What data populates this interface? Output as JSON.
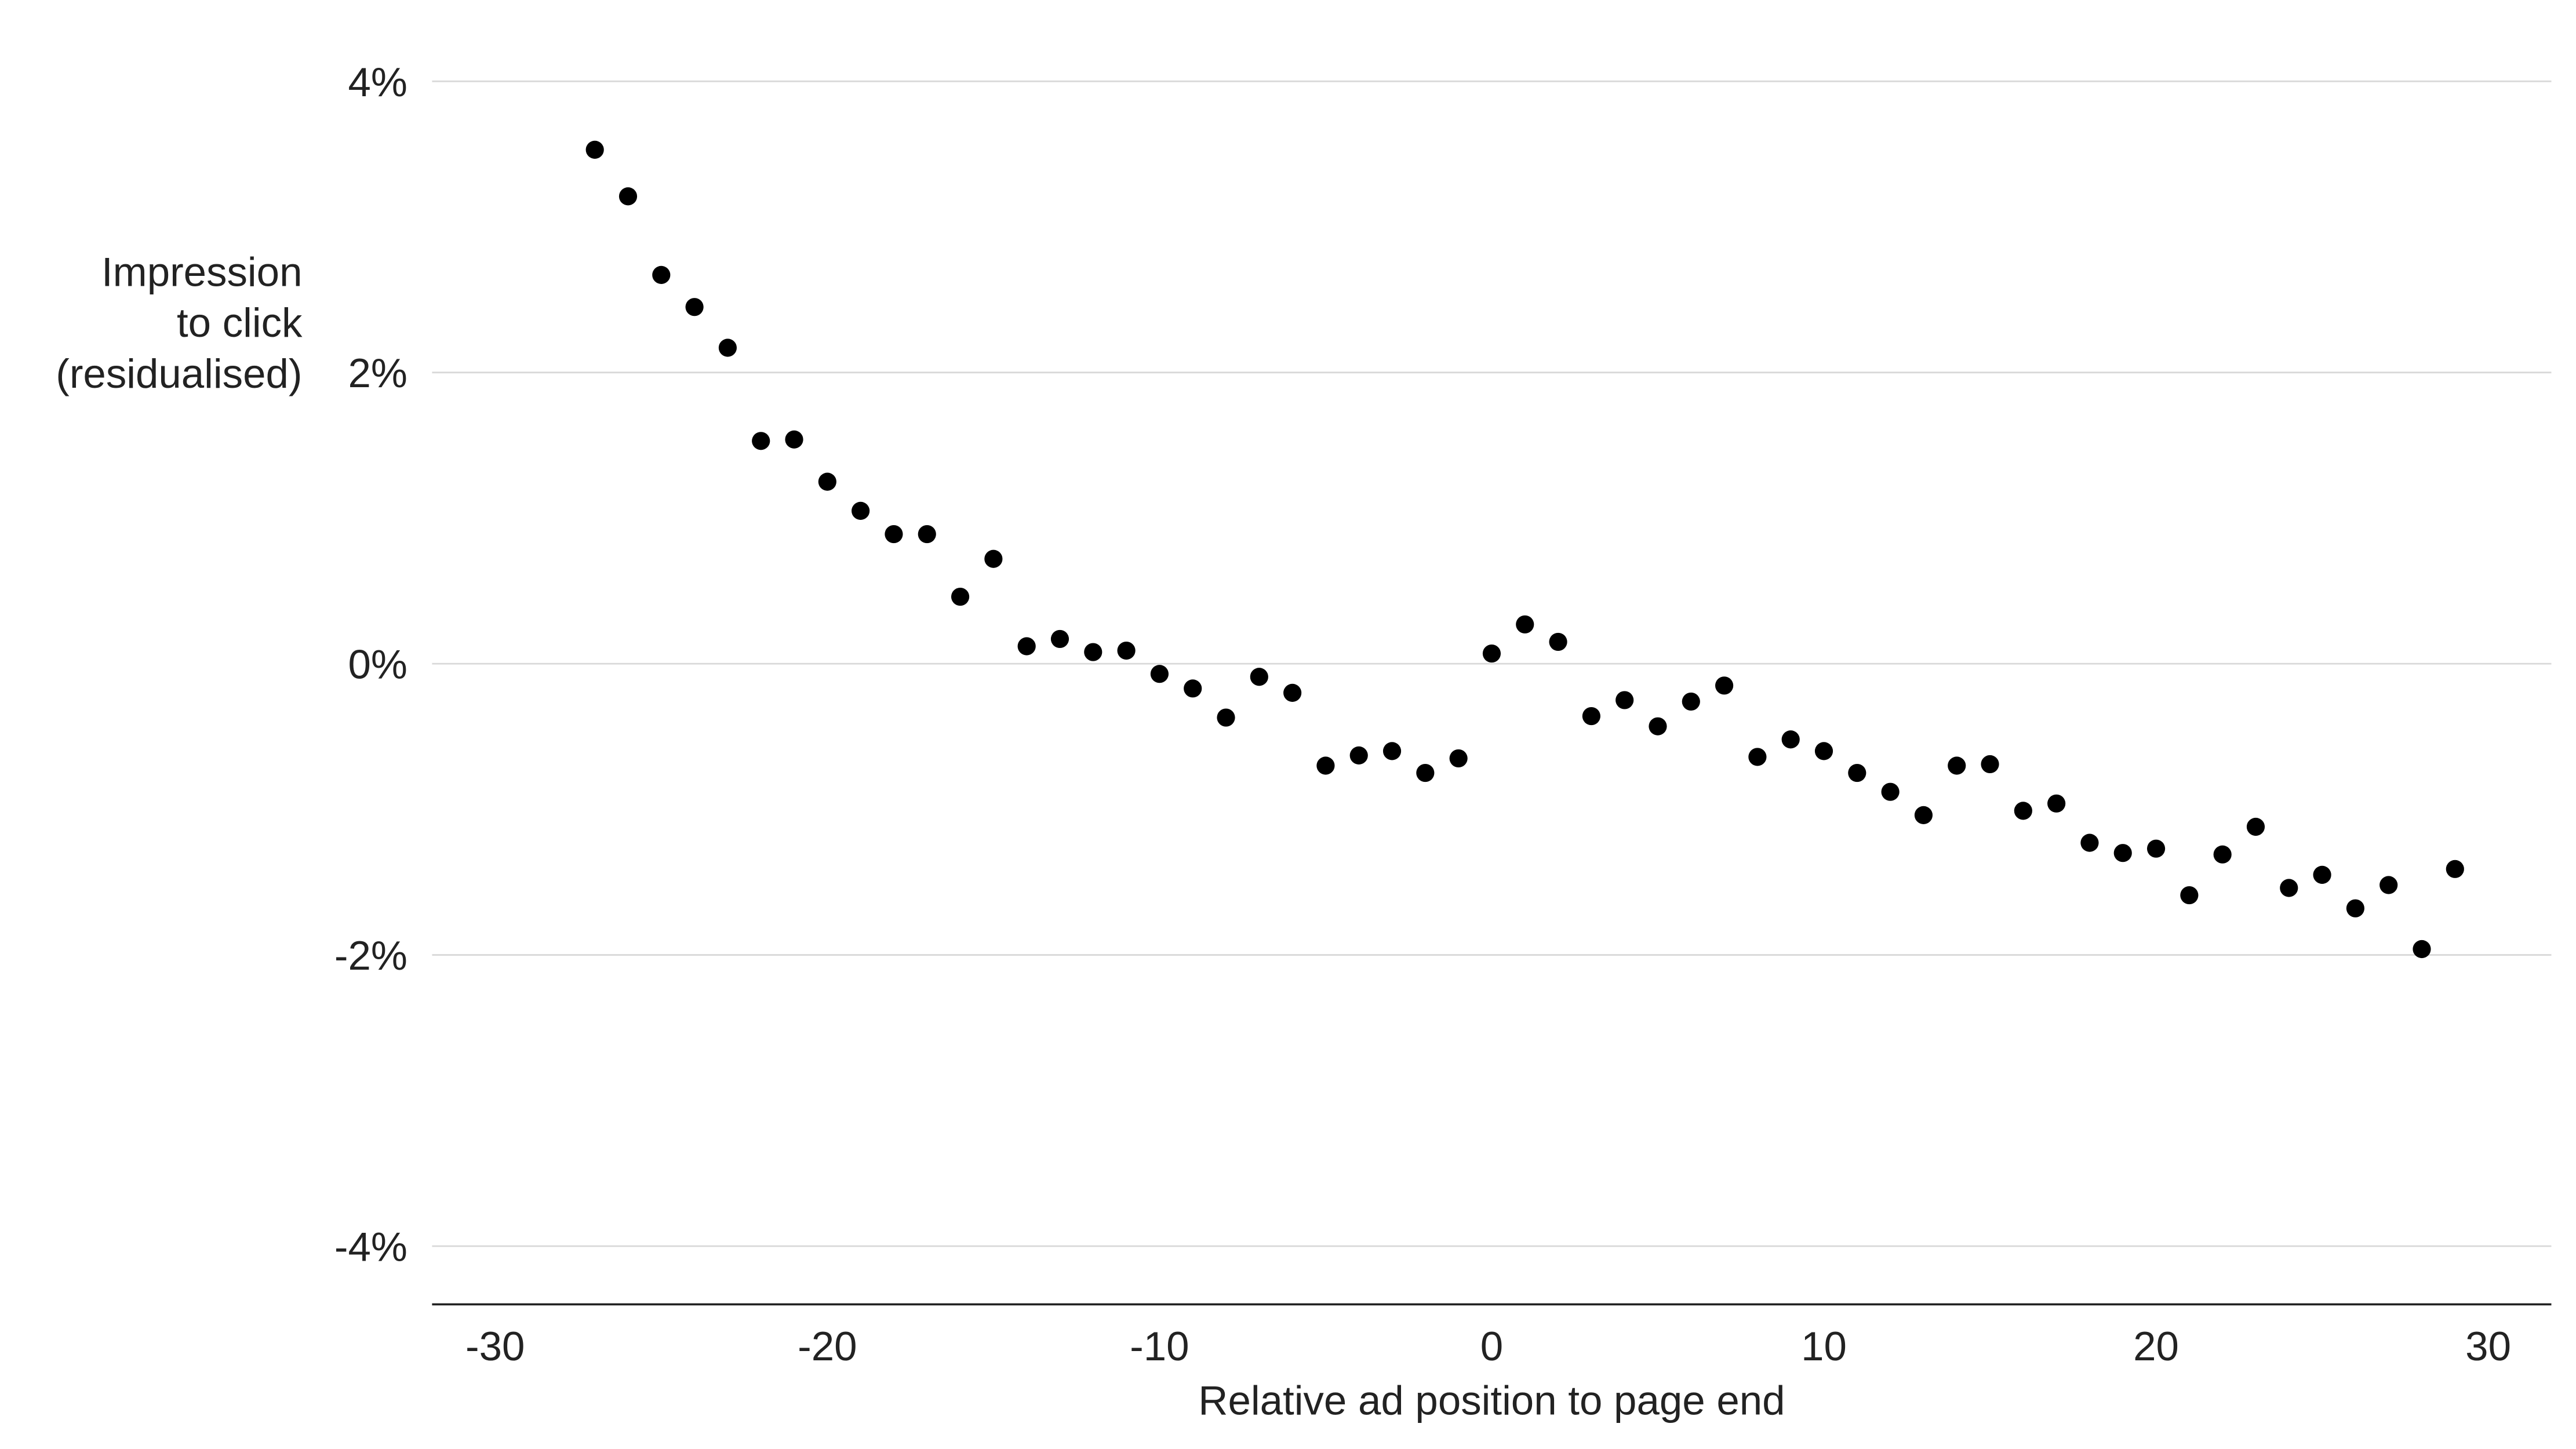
{
  "chart_data": {
    "type": "scatter",
    "xlabel": "Relative ad position to page end",
    "ylabel": [
      "Impression",
      "to click",
      "(residualised)"
    ],
    "color": "#000000",
    "grid": true,
    "xlim": [
      -31.9,
      31.9
    ],
    "ylim": [
      -4.4,
      4.4
    ],
    "xticks": [
      -30,
      -20,
      -10,
      0,
      10,
      20,
      30
    ],
    "yticks": [
      {
        "value": 4,
        "label": "4%"
      },
      {
        "value": 2,
        "label": "2%"
      },
      {
        "value": 0,
        "label": "0%"
      },
      {
        "value": -2,
        "label": "-2%"
      },
      {
        "value": -4,
        "label": "-4%"
      }
    ],
    "x": [
      -27,
      -26,
      -25,
      -24,
      -23,
      -22,
      -21,
      -20,
      -19,
      -18,
      -17,
      -16,
      -15,
      -14,
      -13,
      -12,
      -11,
      -10,
      -9,
      -8,
      -7,
      -6,
      -5,
      -4,
      -3,
      -2,
      -1,
      0,
      1,
      2,
      3,
      4,
      5,
      6,
      7,
      8,
      9,
      10,
      11,
      12,
      13,
      14,
      15,
      16,
      17,
      18,
      19,
      20,
      21,
      22,
      23,
      24,
      25,
      26,
      27,
      28,
      29
    ],
    "values": [
      3.53,
      3.21,
      2.67,
      2.45,
      2.17,
      1.53,
      1.54,
      1.25,
      1.05,
      0.89,
      0.89,
      0.46,
      0.72,
      0.12,
      0.17,
      0.08,
      0.09,
      -0.07,
      -0.17,
      -0.37,
      -0.09,
      -0.2,
      -0.7,
      -0.63,
      -0.6,
      -0.75,
      -0.65,
      0.07,
      0.27,
      0.15,
      -0.36,
      -0.25,
      -0.43,
      -0.26,
      -0.15,
      -0.64,
      -0.52,
      -0.6,
      -0.75,
      -0.88,
      -1.04,
      -0.7,
      -0.69,
      -1.01,
      -0.96,
      -1.23,
      -1.3,
      -1.27,
      -1.59,
      -1.31,
      -1.12,
      -1.54,
      -1.45,
      -1.68,
      -1.52,
      -1.96,
      -1.41
    ]
  }
}
